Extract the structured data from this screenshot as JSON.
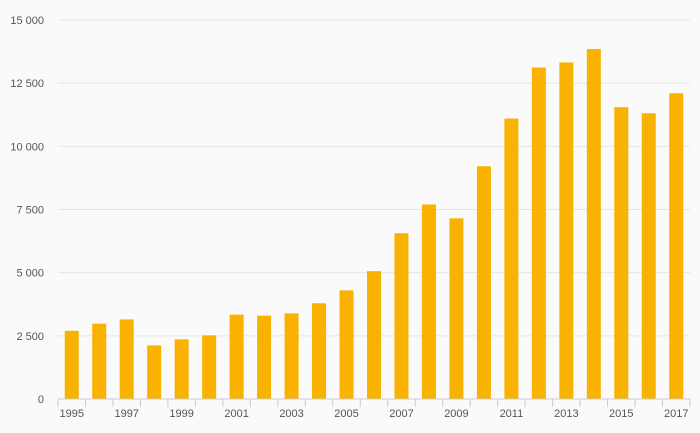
{
  "chart_data": {
    "type": "bar",
    "title": "",
    "xlabel": "",
    "ylabel": "",
    "ylim": [
      0,
      15000
    ],
    "yticks": [
      0,
      2500,
      5000,
      7500,
      10000,
      12500,
      15000
    ],
    "ytick_labels": [
      "0",
      "2 500",
      "5 000",
      "7 500",
      "10 000",
      "12 500",
      "15 000"
    ],
    "categories": [
      "1995",
      "1996",
      "1997",
      "1998",
      "1999",
      "2000",
      "2001",
      "2002",
      "2003",
      "2004",
      "2005",
      "2006",
      "2007",
      "2008",
      "2009",
      "2010",
      "2011",
      "2012",
      "2013",
      "2014",
      "2015",
      "2016",
      "2017"
    ],
    "shown_x_labels": [
      "1995",
      "1997",
      "1999",
      "2001",
      "2003",
      "2005",
      "2007",
      "2009",
      "2011",
      "2013",
      "2015",
      "2017"
    ],
    "values": [
      2700,
      2980,
      3150,
      2120,
      2360,
      2520,
      3340,
      3300,
      3390,
      3790,
      4300,
      5060,
      6560,
      7700,
      7150,
      9210,
      11100,
      13120,
      13320,
      13850,
      11550,
      11310,
      12100
    ],
    "bar_color": "#f9b200",
    "grid_color": "#e5e5e5",
    "axis_color": "#cccccc",
    "grid": true,
    "legend": "none"
  }
}
